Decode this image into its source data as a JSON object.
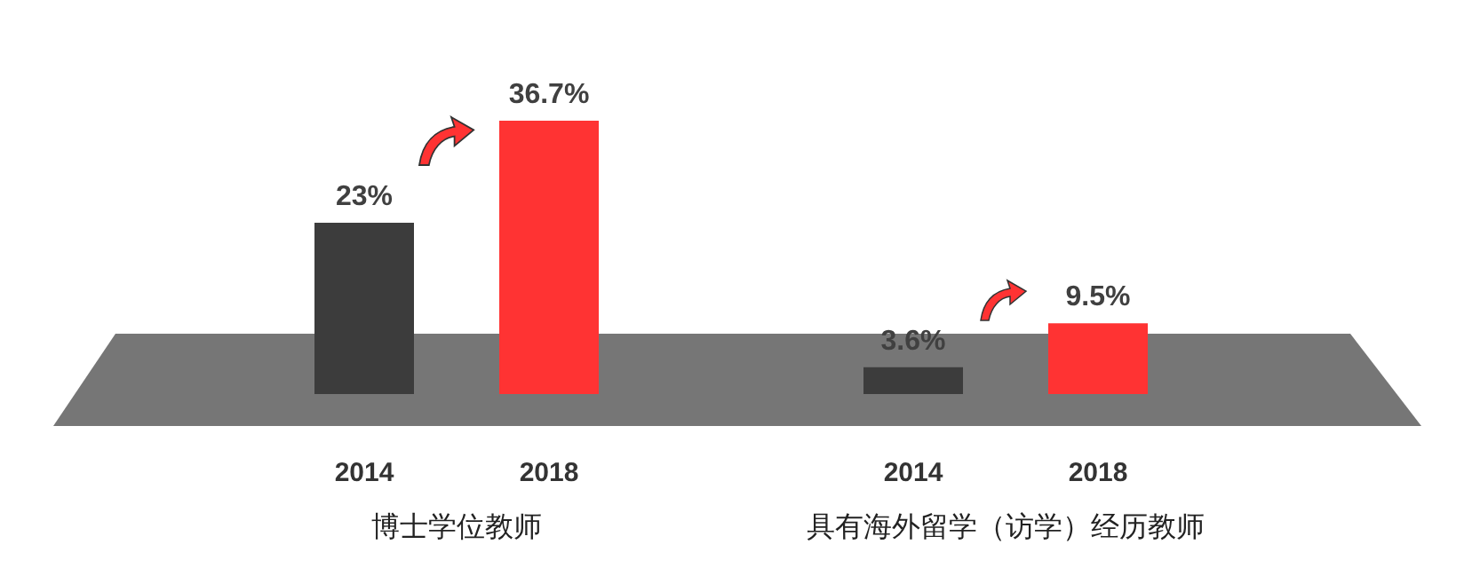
{
  "chart_data": {
    "type": "bar",
    "categories": [
      "博士学位教师",
      "具有海外留学（访学）经历教师"
    ],
    "series": [
      {
        "name": "2014",
        "color": "#3c3c3c",
        "values": [
          23,
          3.6
        ],
        "value_labels": [
          "23%",
          "3.6%"
        ]
      },
      {
        "name": "2018",
        "color": "#ff3333",
        "values": [
          36.7,
          9.5
        ],
        "value_labels": [
          "36.7%",
          "9.5%"
        ]
      }
    ]
  }
}
